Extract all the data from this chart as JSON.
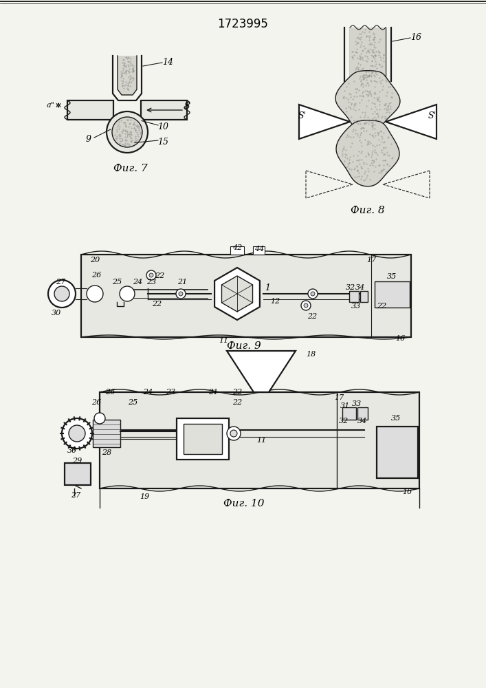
{
  "title": "1723995",
  "bg_color": "#f4f4ef",
  "line_color": "#1a1a1a",
  "fill_stipple": "#d4d4cc",
  "fill_light": "#e8e8e2",
  "fill_mid": "#c8c8c0",
  "fig7_caption": "Фиг. 7",
  "fig8_caption": "Фиг. 8",
  "fig9_caption": "Фиг. 9",
  "fig10_caption": "Фиг. 10"
}
